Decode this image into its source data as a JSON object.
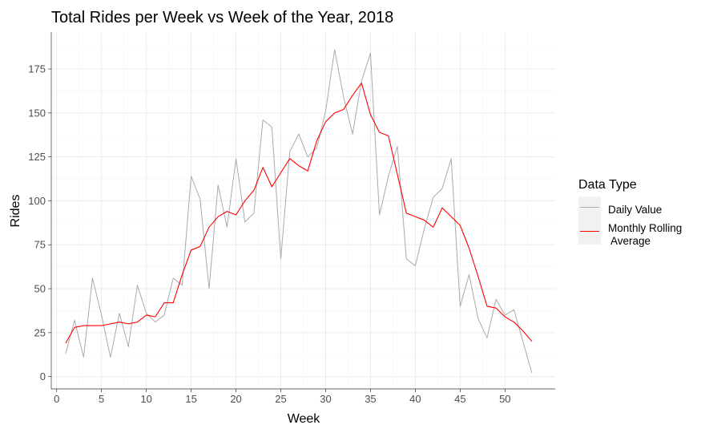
{
  "chart_data": {
    "type": "line",
    "title": "Total Rides per Week vs Week of the Year, 2018",
    "xlabel": "Week",
    "ylabel": "Rides",
    "xlim": [
      -0.6,
      55.6
    ],
    "ylim": [
      -7,
      196
    ],
    "x_ticks": [
      0,
      5,
      10,
      15,
      20,
      25,
      30,
      35,
      40,
      45,
      50
    ],
    "y_ticks": [
      0,
      25,
      50,
      75,
      100,
      125,
      150,
      175
    ],
    "grid": true,
    "legend": {
      "title": "Data Type",
      "position": "right",
      "entries": [
        "Daily Value",
        "Monthly Rolling\n Average"
      ]
    },
    "x": [
      1,
      2,
      3,
      4,
      5,
      6,
      7,
      8,
      9,
      10,
      11,
      12,
      13,
      14,
      15,
      16,
      17,
      18,
      19,
      20,
      21,
      22,
      23,
      24,
      25,
      26,
      27,
      28,
      29,
      30,
      31,
      32,
      33,
      34,
      35,
      36,
      37,
      38,
      39,
      40,
      41,
      42,
      43,
      44,
      45,
      46,
      47,
      48,
      49,
      50,
      51,
      52,
      53
    ],
    "series": [
      {
        "name": "Daily Value",
        "color": "#aaaaaa",
        "values": [
          13,
          32,
          11,
          56,
          35,
          11,
          36,
          17,
          52,
          36,
          31,
          35,
          56,
          52,
          114,
          101,
          50,
          109,
          85,
          124,
          88,
          93,
          146,
          142,
          67,
          128,
          138,
          125,
          130,
          151,
          186,
          159,
          138,
          168,
          184,
          92,
          114,
          131,
          67,
          63,
          84,
          102,
          107,
          124,
          40,
          58,
          33,
          22,
          44,
          35,
          38,
          20,
          2
        ]
      },
      {
        "name": "Monthly Rolling\n Average",
        "color": "#ff0000",
        "values": [
          19,
          28,
          29,
          29,
          29,
          30,
          31,
          30,
          31,
          35,
          34,
          42,
          42,
          58,
          72,
          74,
          85,
          91,
          94,
          92,
          100,
          106,
          119,
          108,
          116,
          124,
          120,
          117,
          134,
          145,
          150,
          152,
          160,
          167,
          149,
          139,
          137,
          115,
          93,
          91,
          89,
          85,
          96,
          91,
          86,
          73,
          57,
          40,
          39,
          34,
          31,
          26,
          20
        ]
      }
    ]
  }
}
